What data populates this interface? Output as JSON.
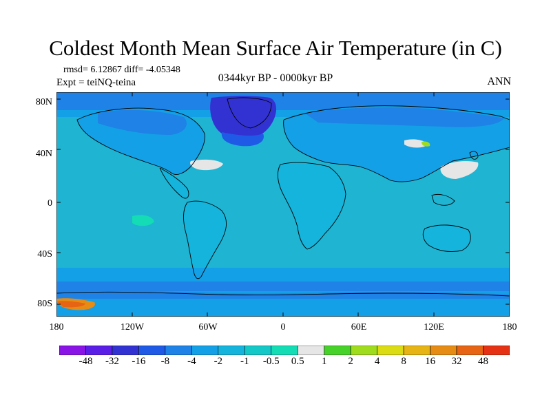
{
  "title": "Coldest Month Mean Surface Air Temperature (in C)",
  "stats": "rmsd= 6.12867 diff= -4.05348",
  "experiment": "Expt = teiNQ-teina",
  "period": "0344kyr BP - 0000kyr BP",
  "season": "ANN",
  "y_ticks": [
    "80N",
    "40N",
    "0",
    "40S",
    "80S"
  ],
  "x_ticks": [
    "180",
    "120W",
    "60W",
    "0",
    "60E",
    "120E",
    "180"
  ],
  "colorbar": {
    "labels": [
      "-48",
      "-32",
      "-16",
      "-8",
      "-4",
      "-2",
      "-1",
      "-0.5",
      "0.5",
      "1",
      "2",
      "4",
      "8",
      "16",
      "32",
      "48"
    ],
    "colors": [
      "#8a14e6",
      "#5a1ee6",
      "#3232d2",
      "#1e5ae6",
      "#1e82e6",
      "#14a0e6",
      "#14b4dc",
      "#14c8c8",
      "#14dcb4",
      "#e6e6e6",
      "#46d228",
      "#a0dc1e",
      "#dcdc14",
      "#e6b414",
      "#e68c14",
      "#e66414",
      "#e63214"
    ]
  },
  "colors": {
    "ocean_base": "#1eb4d2",
    "land_base": "#14a0e6",
    "cold_deep": "#3232d2",
    "cold_mid": "#1e5ae6",
    "warm": "#e68c14",
    "neutral": "#e6e6e6"
  }
}
